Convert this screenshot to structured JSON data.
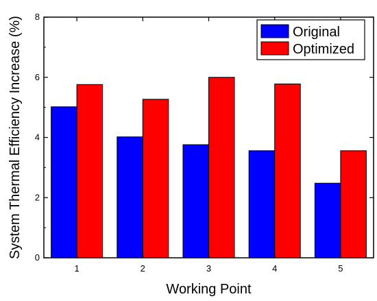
{
  "chart_data": {
    "type": "bar",
    "categories": [
      "1",
      "2",
      "3",
      "4",
      "5"
    ],
    "series": [
      {
        "name": "Original",
        "values": [
          5.02,
          4.02,
          3.76,
          3.56,
          2.48
        ],
        "color": "#0000ff"
      },
      {
        "name": "Optimized",
        "values": [
          5.76,
          5.27,
          6.0,
          5.78,
          3.56
        ],
        "color": "#ff0000"
      }
    ],
    "xlabel": "Working Point",
    "ylabel": "System Thermal Efficiency Increase (%)",
    "ylim": [
      0,
      8
    ],
    "yticks": [
      "0",
      "2",
      "4",
      "6",
      "8"
    ],
    "grid": false,
    "legend_position": "top-right"
  }
}
